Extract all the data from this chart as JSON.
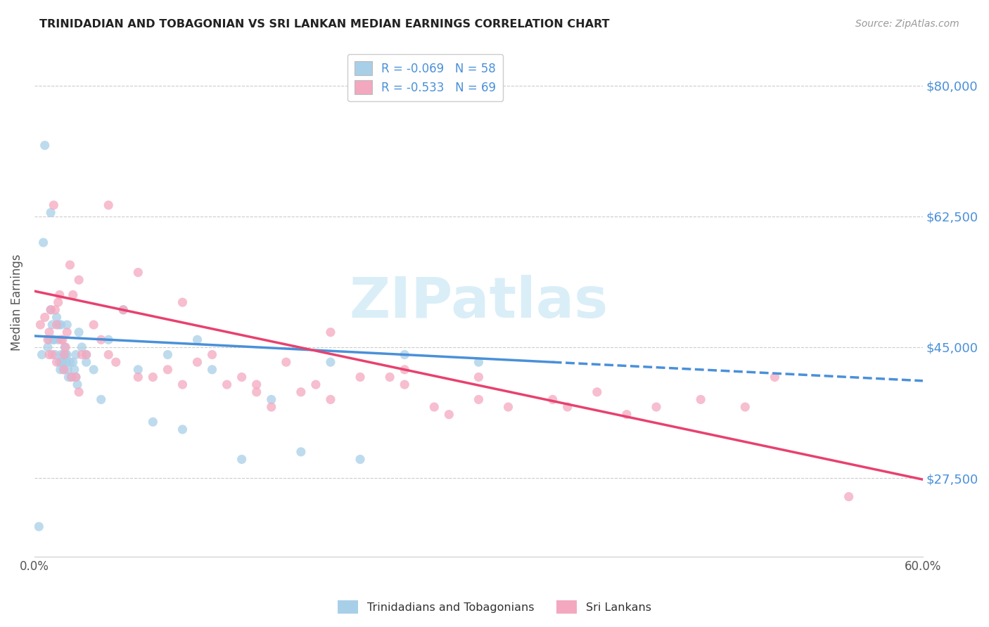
{
  "title": "TRINIDADIAN AND TOBAGONIAN VS SRI LANKAN MEDIAN EARNINGS CORRELATION CHART",
  "source": "Source: ZipAtlas.com",
  "ylabel": "Median Earnings",
  "yticks": [
    27500,
    45000,
    62500,
    80000
  ],
  "ytick_labels": [
    "$27,500",
    "$45,000",
    "$62,500",
    "$80,000"
  ],
  "xmin": 0.0,
  "xmax": 60.0,
  "ymin": 17000,
  "ymax": 85000,
  "legend_label_blue": "Trinidadians and Tobagonians",
  "legend_label_pink": "Sri Lankans",
  "legend_text_blue": "R = -0.069   N = 58",
  "legend_text_pink": "R = -0.533   N = 69",
  "blue_scatter_color": "#a8cfe8",
  "pink_scatter_color": "#f4a8c0",
  "trend_blue_color": "#4a90d9",
  "trend_pink_color": "#e8416e",
  "watermark": "ZIPatlas",
  "watermark_color": "#daeef8",
  "title_color": "#222222",
  "source_color": "#999999",
  "ylabel_color": "#555555",
  "ytick_color": "#4a90d9",
  "grid_color": "#cccccc",
  "blue_x": [
    0.3,
    0.5,
    0.7,
    0.9,
    1.0,
    1.1,
    1.2,
    1.3,
    1.4,
    1.5,
    1.6,
    1.65,
    1.7,
    1.75,
    1.8,
    1.85,
    1.9,
    1.95,
    2.0,
    2.05,
    2.1,
    2.15,
    2.2,
    2.25,
    2.3,
    2.4,
    2.5,
    2.6,
    2.7,
    2.8,
    2.9,
    3.0,
    3.2,
    3.5,
    4.0,
    4.5,
    5.0,
    6.0,
    7.0,
    8.0,
    9.0,
    10.0,
    11.0,
    12.0,
    14.0,
    16.0,
    18.0,
    20.0,
    22.0,
    25.0,
    30.0,
    0.6,
    1.1,
    1.3,
    1.8,
    2.2,
    2.8,
    3.5
  ],
  "blue_y": [
    21000,
    44000,
    72000,
    45000,
    46000,
    50000,
    48000,
    46000,
    44000,
    49000,
    46000,
    48000,
    43000,
    42000,
    44000,
    43000,
    43000,
    42000,
    44000,
    45000,
    44000,
    43000,
    44000,
    42000,
    41000,
    43000,
    41000,
    43000,
    42000,
    41000,
    40000,
    47000,
    45000,
    44000,
    42000,
    38000,
    46000,
    50000,
    42000,
    35000,
    44000,
    34000,
    46000,
    42000,
    30000,
    38000,
    31000,
    43000,
    30000,
    44000,
    43000,
    59000,
    63000,
    46000,
    48000,
    48000,
    44000,
    43000
  ],
  "pink_x": [
    0.4,
    0.7,
    0.9,
    1.0,
    1.1,
    1.2,
    1.3,
    1.4,
    1.5,
    1.6,
    1.7,
    1.8,
    1.9,
    2.0,
    2.1,
    2.2,
    2.4,
    2.6,
    2.8,
    3.0,
    3.2,
    3.5,
    4.0,
    4.5,
    5.0,
    5.5,
    6.0,
    7.0,
    8.0,
    9.0,
    10.0,
    11.0,
    12.0,
    13.0,
    14.0,
    15.0,
    16.0,
    17.0,
    18.0,
    19.0,
    20.0,
    22.0,
    24.0,
    25.0,
    27.0,
    28.0,
    30.0,
    32.0,
    35.0,
    36.0,
    38.0,
    40.0,
    42.0,
    45.0,
    48.0,
    50.0,
    55.0,
    1.0,
    1.5,
    2.0,
    2.5,
    3.0,
    5.0,
    7.0,
    10.0,
    15.0,
    20.0,
    25.0,
    30.0
  ],
  "pink_y": [
    48000,
    49000,
    46000,
    47000,
    50000,
    44000,
    64000,
    50000,
    48000,
    51000,
    52000,
    46000,
    46000,
    44000,
    45000,
    47000,
    56000,
    52000,
    41000,
    54000,
    44000,
    44000,
    48000,
    46000,
    44000,
    43000,
    50000,
    55000,
    41000,
    42000,
    51000,
    43000,
    44000,
    40000,
    41000,
    40000,
    37000,
    43000,
    39000,
    40000,
    38000,
    41000,
    41000,
    42000,
    37000,
    36000,
    41000,
    37000,
    38000,
    37000,
    39000,
    36000,
    37000,
    38000,
    37000,
    41000,
    25000,
    44000,
    43000,
    42000,
    41000,
    39000,
    64000,
    41000,
    40000,
    39000,
    47000,
    40000,
    38000
  ]
}
